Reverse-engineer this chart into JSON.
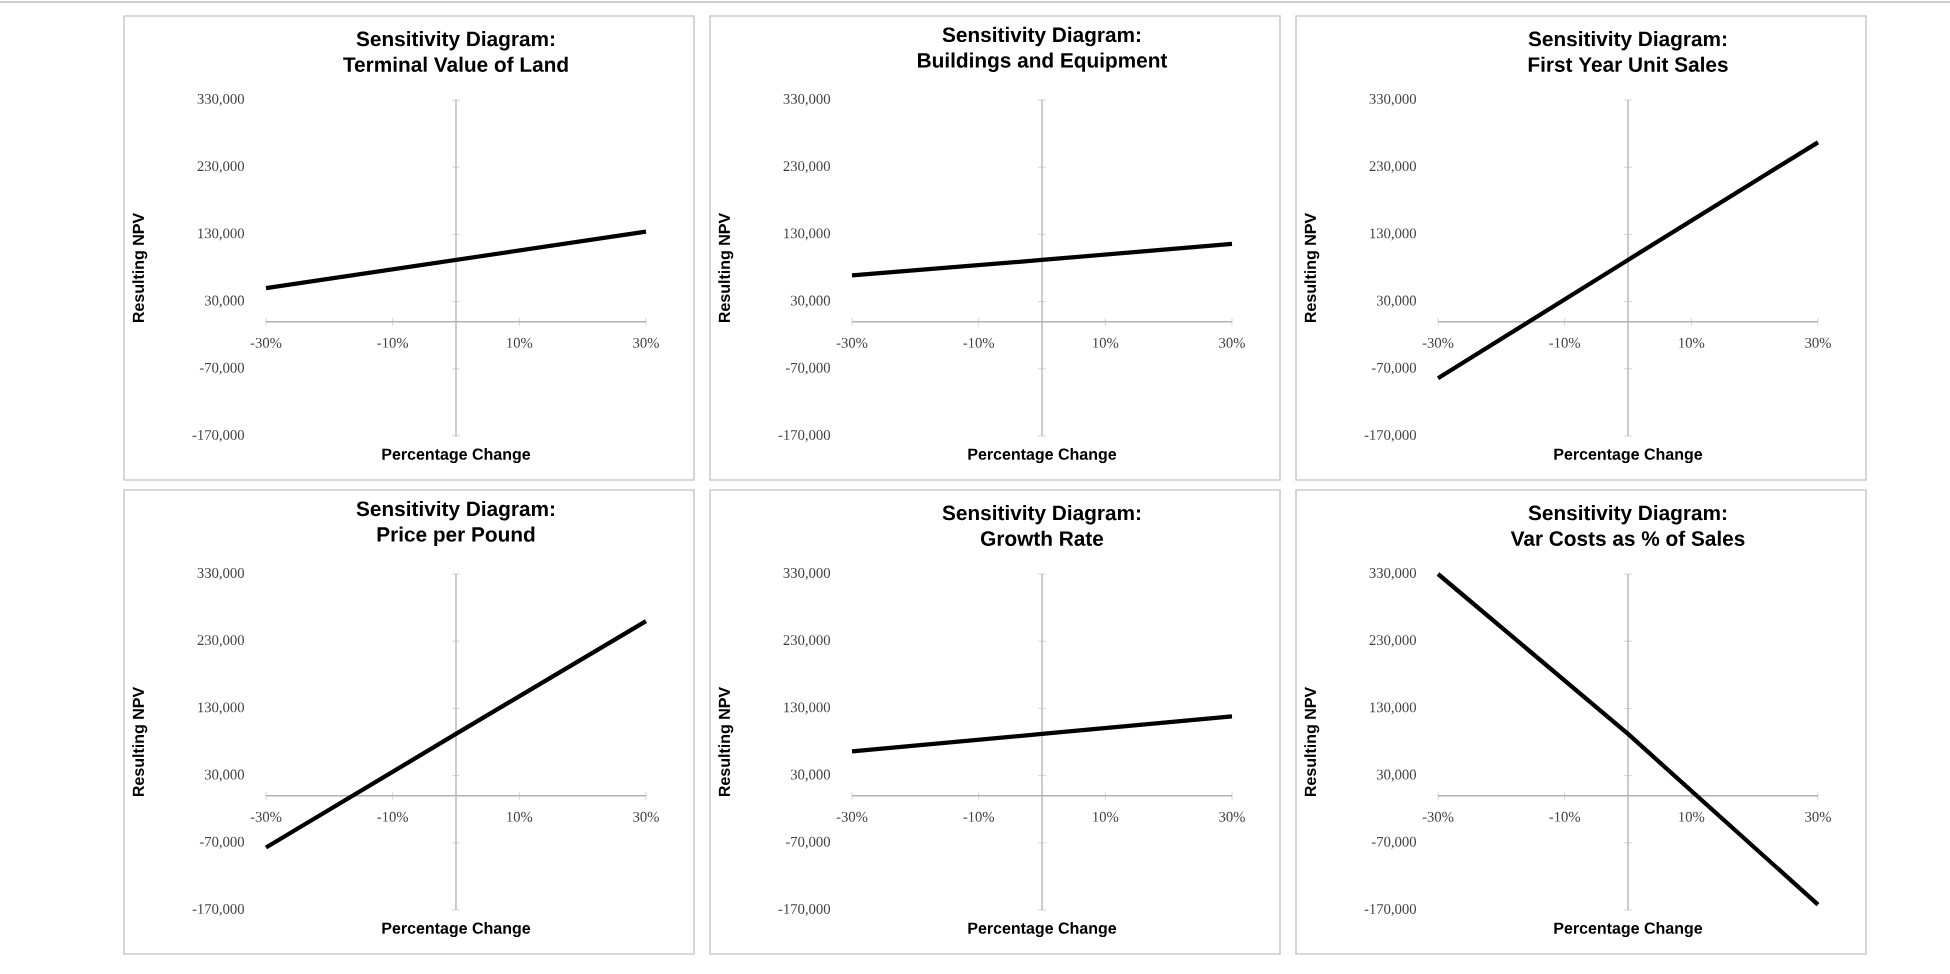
{
  "chart_data": [
    {
      "type": "line",
      "title": "Sensitivity Diagram:",
      "subtitle": "Terminal Value of Land",
      "xlabel": "Percentage Change",
      "ylabel": "Resulting NPV",
      "x": [
        -30,
        0,
        30
      ],
      "values": [
        50000,
        92000,
        134000
      ],
      "color": "#000000",
      "xlim": [
        -30,
        30
      ],
      "ylim": [
        -170000,
        330000
      ],
      "xticks": [
        {
          "value": -30,
          "label": "-30%"
        },
        {
          "value": -10,
          "label": "-10%"
        },
        {
          "value": 10,
          "label": "10%"
        },
        {
          "value": 30,
          "label": "30%"
        }
      ],
      "yticks": [
        {
          "value": -170000,
          "label": "-170,000"
        },
        {
          "value": -70000,
          "label": "-70,000"
        },
        {
          "value": 30000,
          "label": "30,000"
        },
        {
          "value": 130000,
          "label": "130,000"
        },
        {
          "value": 230000,
          "label": "230,000"
        },
        {
          "value": 330000,
          "label": "330,000"
        }
      ]
    },
    {
      "type": "line",
      "title": "Sensitivity Diagram:",
      "subtitle": "Buildings and Equipment",
      "xlabel": "Percentage Change",
      "ylabel": "Resulting NPV",
      "x": [
        -30,
        0,
        30
      ],
      "values": [
        69000,
        92000,
        116000
      ],
      "color": "#000000",
      "xlim": [
        -30,
        30
      ],
      "ylim": [
        -170000,
        330000
      ],
      "xticks": [
        {
          "value": -30,
          "label": "-30%"
        },
        {
          "value": -10,
          "label": "-10%"
        },
        {
          "value": 10,
          "label": "10%"
        },
        {
          "value": 30,
          "label": "30%"
        }
      ],
      "yticks": [
        {
          "value": -170000,
          "label": "-170,000"
        },
        {
          "value": -70000,
          "label": "-70,000"
        },
        {
          "value": 30000,
          "label": "30,000"
        },
        {
          "value": 130000,
          "label": "130,000"
        },
        {
          "value": 230000,
          "label": "230,000"
        },
        {
          "value": 330000,
          "label": "330,000"
        }
      ]
    },
    {
      "type": "line",
      "title": "Sensitivity Diagram:",
      "subtitle": "First Year Unit Sales",
      "xlabel": "Percentage Change",
      "ylabel": "Resulting NPV",
      "x": [
        -30,
        0,
        30
      ],
      "values": [
        -84000,
        92000,
        267000
      ],
      "color": "#000000",
      "xlim": [
        -30,
        30
      ],
      "ylim": [
        -170000,
        330000
      ],
      "xticks": [
        {
          "value": -30,
          "label": "-30%"
        },
        {
          "value": -10,
          "label": "-10%"
        },
        {
          "value": 10,
          "label": "10%"
        },
        {
          "value": 30,
          "label": "30%"
        }
      ],
      "yticks": [
        {
          "value": -170000,
          "label": "-170,000"
        },
        {
          "value": -70000,
          "label": "-70,000"
        },
        {
          "value": 30000,
          "label": "30,000"
        },
        {
          "value": 130000,
          "label": "130,000"
        },
        {
          "value": 230000,
          "label": "230,000"
        },
        {
          "value": 330000,
          "label": "330,000"
        }
      ]
    },
    {
      "type": "line",
      "title": "Sensitivity Diagram:",
      "subtitle": "Price per Pound",
      "xlabel": "Percentage Change",
      "ylabel": "Resulting NPV",
      "x": [
        -30,
        0,
        30
      ],
      "values": [
        -77000,
        92000,
        260000
      ],
      "color": "#000000",
      "xlim": [
        -30,
        30
      ],
      "ylim": [
        -170000,
        330000
      ],
      "xticks": [
        {
          "value": -30,
          "label": "-30%"
        },
        {
          "value": -10,
          "label": "-10%"
        },
        {
          "value": 10,
          "label": "10%"
        },
        {
          "value": 30,
          "label": "30%"
        }
      ],
      "yticks": [
        {
          "value": -170000,
          "label": "-170,000"
        },
        {
          "value": -70000,
          "label": "-70,000"
        },
        {
          "value": 30000,
          "label": "30,000"
        },
        {
          "value": 130000,
          "label": "130,000"
        },
        {
          "value": 230000,
          "label": "230,000"
        },
        {
          "value": 330000,
          "label": "330,000"
        }
      ]
    },
    {
      "type": "line",
      "title": "Sensitivity Diagram:",
      "subtitle": "Growth Rate",
      "xlabel": "Percentage Change",
      "ylabel": "Resulting NPV",
      "x": [
        -30,
        0,
        30
      ],
      "values": [
        66000,
        92000,
        118000
      ],
      "color": "#000000",
      "xlim": [
        -30,
        30
      ],
      "ylim": [
        -170000,
        330000
      ],
      "xticks": [
        {
          "value": -30,
          "label": "-30%"
        },
        {
          "value": -10,
          "label": "-10%"
        },
        {
          "value": 10,
          "label": "10%"
        },
        {
          "value": 30,
          "label": "30%"
        }
      ],
      "yticks": [
        {
          "value": -170000,
          "label": "-170,000"
        },
        {
          "value": -70000,
          "label": "-70,000"
        },
        {
          "value": 30000,
          "label": "30,000"
        },
        {
          "value": 130000,
          "label": "130,000"
        },
        {
          "value": 230000,
          "label": "230,000"
        },
        {
          "value": 330000,
          "label": "330,000"
        }
      ]
    },
    {
      "type": "line",
      "title": "Sensitivity Diagram:",
      "subtitle": "Var Costs as % of Sales",
      "xlabel": "Percentage Change",
      "ylabel": "Resulting NPV",
      "x": [
        -30,
        0,
        30
      ],
      "values": [
        330000,
        92000,
        -162000
      ],
      "color": "#000000",
      "xlim": [
        -30,
        30
      ],
      "ylim": [
        -170000,
        330000
      ],
      "xticks": [
        {
          "value": -30,
          "label": "-30%"
        },
        {
          "value": -10,
          "label": "-10%"
        },
        {
          "value": 10,
          "label": "10%"
        },
        {
          "value": 30,
          "label": "30%"
        }
      ],
      "yticks": [
        {
          "value": -170000,
          "label": "-170,000"
        },
        {
          "value": -70000,
          "label": "-70,000"
        },
        {
          "value": 30000,
          "label": "30,000"
        },
        {
          "value": 130000,
          "label": "130,000"
        },
        {
          "value": 230000,
          "label": "230,000"
        },
        {
          "value": 330000,
          "label": "330,000"
        }
      ]
    }
  ]
}
